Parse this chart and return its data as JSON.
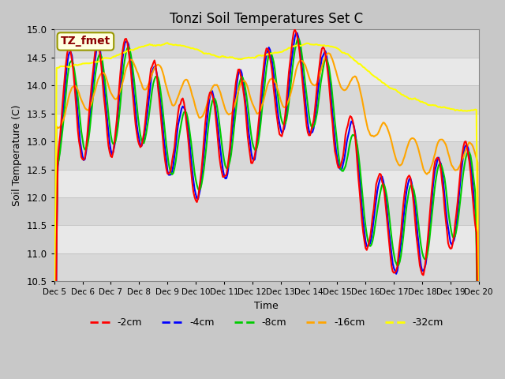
{
  "title": "Tonzi Soil Temperatures Set C",
  "xlabel": "Time",
  "ylabel": "Soil Temperature (C)",
  "ylim": [
    10.5,
    15.0
  ],
  "xlim": [
    0,
    360
  ],
  "annotation_text": "TZ_fmet",
  "annotation_color": "#8B0000",
  "annotation_bg": "#FFFFE0",
  "line_colors": {
    "-2cm": "#FF0000",
    "-4cm": "#0000FF",
    "-8cm": "#00CC00",
    "-16cm": "#FFA500",
    "-32cm": "#FFFF00"
  },
  "legend_labels": [
    "-2cm",
    "-4cm",
    "-8cm",
    "-16cm",
    "-32cm"
  ],
  "xtick_labels": [
    "Dec 5",
    "Dec 6",
    "Dec 7",
    "Dec 8",
    "Dec 9",
    "Dec 10",
    "Dec 11",
    "Dec 12",
    "Dec 13",
    "Dec 14",
    "Dec 15",
    "Dec 16",
    "Dec 17",
    "Dec 18",
    "Dec 19",
    "Dec 20"
  ],
  "xtick_positions": [
    0,
    24,
    48,
    72,
    96,
    120,
    144,
    168,
    192,
    216,
    240,
    264,
    288,
    312,
    336,
    360
  ]
}
